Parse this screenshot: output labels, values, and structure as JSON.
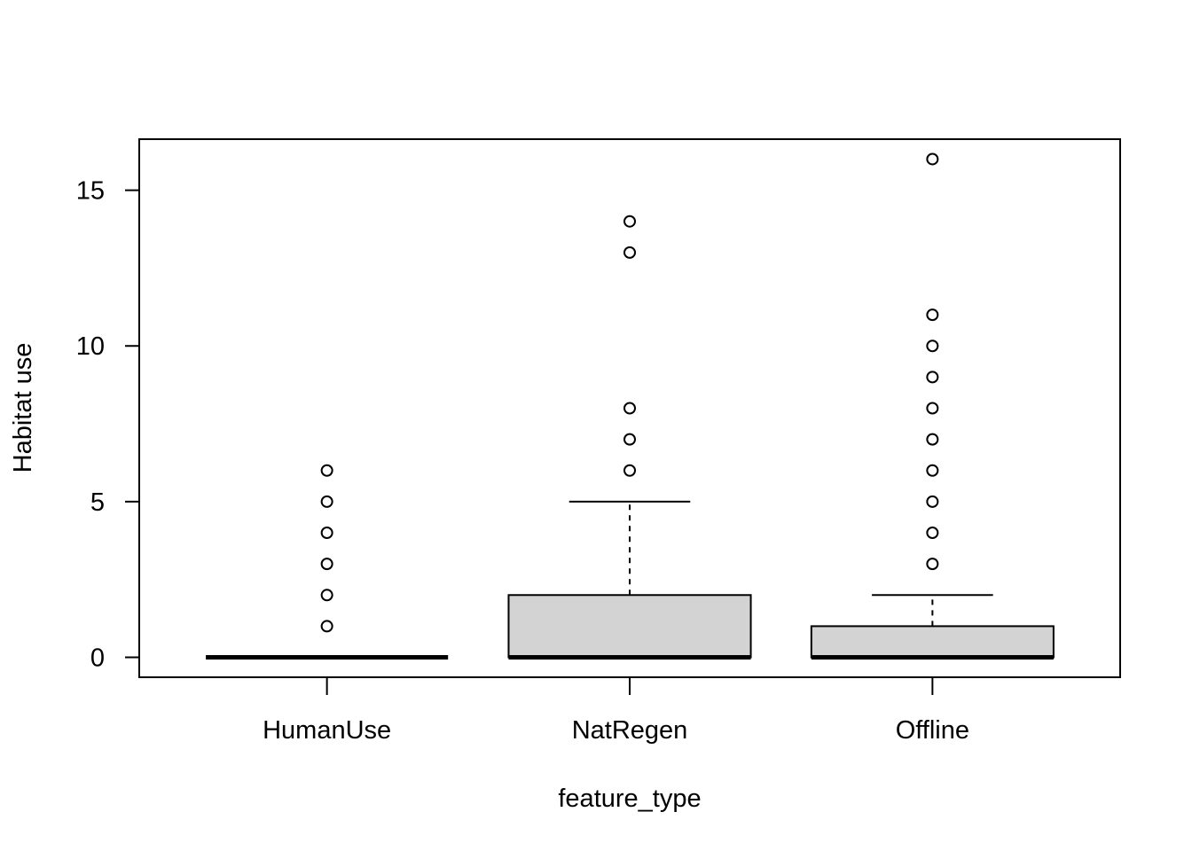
{
  "chart_data": {
    "type": "boxplot",
    "title": "",
    "xlabel": "feature_type",
    "ylabel": "Habitat use",
    "ylim": [
      -0.64,
      16.64
    ],
    "yticks": [
      0,
      5,
      10,
      15
    ],
    "grid": false,
    "box_fill": "#d3d3d3",
    "categories": [
      "HumanUse",
      "NatRegen",
      "Offline"
    ],
    "boxes": [
      {
        "category": "HumanUse",
        "whisker_low": 0,
        "q1": 0,
        "median": 0,
        "q3": 0,
        "whisker_high": 0,
        "outliers": [
          1,
          2,
          3,
          4,
          5,
          6
        ]
      },
      {
        "category": "NatRegen",
        "whisker_low": 0,
        "q1": 0,
        "median": 0,
        "q3": 2,
        "whisker_high": 5,
        "outliers": [
          6,
          7,
          8,
          13,
          14
        ]
      },
      {
        "category": "Offline",
        "whisker_low": 0,
        "q1": 0,
        "median": 0,
        "q3": 1,
        "whisker_high": 2,
        "outliers": [
          3,
          4,
          5,
          6,
          7,
          8,
          9,
          10,
          11,
          16
        ]
      }
    ]
  }
}
